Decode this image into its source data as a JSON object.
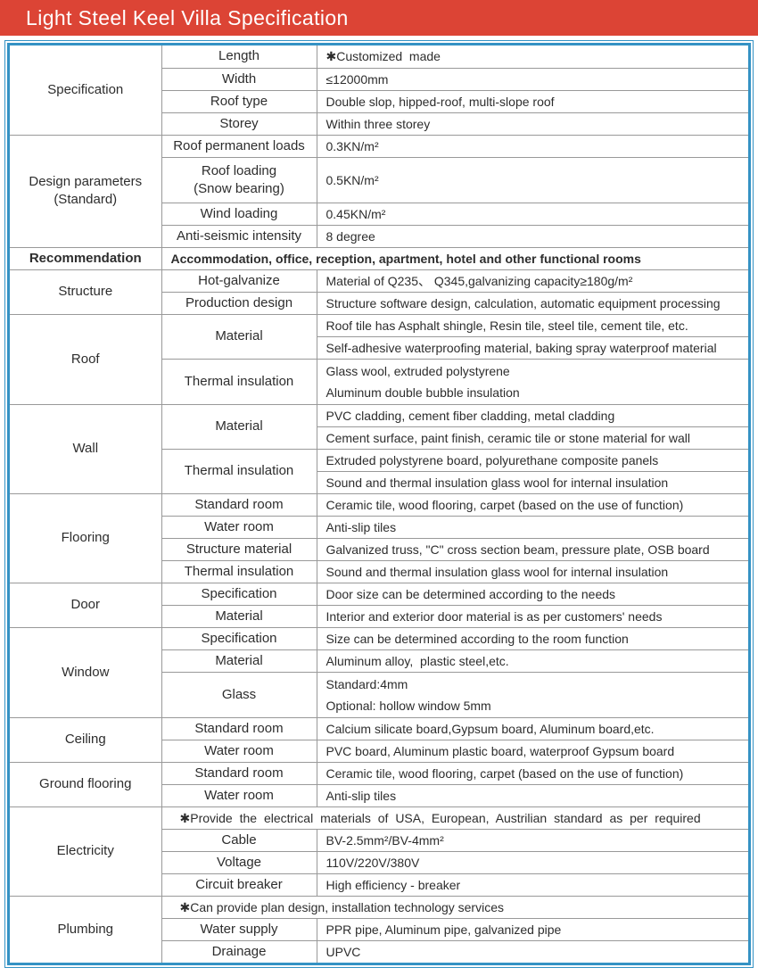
{
  "header": {
    "title": "Light Steel Keel Villa Specification",
    "bg_color": "#dc4435",
    "text_color": "#ffffff"
  },
  "table": {
    "frame_border_color": "#3492c4",
    "grid_line_color": "#999999",
    "sections": [
      {
        "category": "Specification",
        "rows": [
          {
            "sub": "Length",
            "value": "✱Customized  made"
          },
          {
            "sub": "Width",
            "value": "≤12000mm"
          },
          {
            "sub": "Roof type",
            "value": "Double slop, hipped-roof, multi-slope roof"
          },
          {
            "sub": "Storey",
            "value": "Within three storey"
          }
        ]
      },
      {
        "category": "Design parameters\n(Standard)",
        "rows": [
          {
            "sub": "Roof permanent loads",
            "value": "0.3KN/m²"
          },
          {
            "sub": "Roof loading\n(Snow bearing)",
            "value": "0.5KN/m²"
          },
          {
            "sub": "Wind loading",
            "value": "0.45KN/m²"
          },
          {
            "sub": "Anti-seismic intensity",
            "value": "8 degree"
          }
        ]
      },
      {
        "category": "Recommendation",
        "rows": [
          {
            "value": "Accommodation, office, reception, apartment, hotel and other functional rooms"
          }
        ]
      },
      {
        "category": "Structure",
        "rows": [
          {
            "sub": "Hot-galvanize",
            "value": "Material of Q235、 Q345,galvanizing capacity≥180g/m²"
          },
          {
            "sub": "Production design",
            "value": "Structure software design, calculation, automatic equipment processing"
          }
        ]
      },
      {
        "category": "Roof",
        "rows": [
          {
            "sub": "Material",
            "value": "Roof tile has Asphalt shingle, Resin tile, steel tile, cement tile, etc."
          },
          {
            "value": "Self-adhesive waterproofing material, baking spray waterproof material"
          },
          {
            "sub": "Thermal insulation",
            "value": "Glass wool, extruded polystyrene\nAluminum double bubble insulation"
          }
        ]
      },
      {
        "category": "Wall",
        "rows": [
          {
            "sub": "Material",
            "value": "PVC cladding, cement fiber cladding, metal cladding"
          },
          {
            "value": "Cement surface, paint finish, ceramic tile or stone material for wall"
          },
          {
            "sub": "Thermal insulation",
            "value": "Extruded polystyrene board, polyurethane composite panels"
          },
          {
            "value": "Sound and thermal insulation glass wool for internal insulation"
          }
        ]
      },
      {
        "category": "Flooring",
        "rows": [
          {
            "sub": "Standard room",
            "value": "Ceramic tile, wood flooring, carpet (based on the use of function)"
          },
          {
            "sub": "Water room",
            "value": "Anti-slip tiles"
          },
          {
            "sub": "Structure material",
            "value": "Galvanized truss, \"C\" cross section beam, pressure plate, OSB board"
          },
          {
            "sub": "Thermal insulation",
            "value": "Sound and thermal insulation glass wool for internal insulation"
          }
        ]
      },
      {
        "category": "Door",
        "rows": [
          {
            "sub": "Specification",
            "value": "Door size can be determined according to the needs"
          },
          {
            "sub": "Material",
            "value": "Interior and exterior door material is as per customers' needs"
          }
        ]
      },
      {
        "category": "Window",
        "rows": [
          {
            "sub": "Specification",
            "value": "Size can be determined according to the room function"
          },
          {
            "sub": "Material",
            "value": "Aluminum alloy,  plastic steel,etc."
          },
          {
            "sub": "Glass",
            "value": "Standard:4mm\nOptional: hollow window 5mm"
          }
        ]
      },
      {
        "category": "Ceiling",
        "rows": [
          {
            "sub": "Standard room",
            "value": "Calcium silicate board,Gypsum board, Aluminum board,etc."
          },
          {
            "sub": "Water room",
            "value": "PVC board, Aluminum plastic board, waterproof Gypsum board"
          }
        ]
      },
      {
        "category": "Ground flooring",
        "rows": [
          {
            "sub": "Standard room",
            "value": "Ceramic tile, wood flooring, carpet (based on the use of function)"
          },
          {
            "sub": "Water room",
            "value": "Anti-slip tiles"
          }
        ]
      },
      {
        "category": "Electricity",
        "rows": [
          {
            "value": "✱Provide the electrical materials of USA, European, Austrilian standard as per required"
          },
          {
            "sub": "Cable",
            "value": "BV-2.5mm²/BV-4mm²"
          },
          {
            "sub": "Voltage",
            "value": "110V/220V/380V"
          },
          {
            "sub": "Circuit breaker",
            "value": "High efficiency - breaker"
          }
        ]
      },
      {
        "category": "Plumbing",
        "rows": [
          {
            "value": "✱Can provide plan design, installation technology services"
          },
          {
            "sub": "Water supply",
            "value": "PPR pipe, Aluminum pipe, galvanized pipe"
          },
          {
            "sub": "Drainage",
            "value": "UPVC"
          }
        ]
      }
    ]
  }
}
